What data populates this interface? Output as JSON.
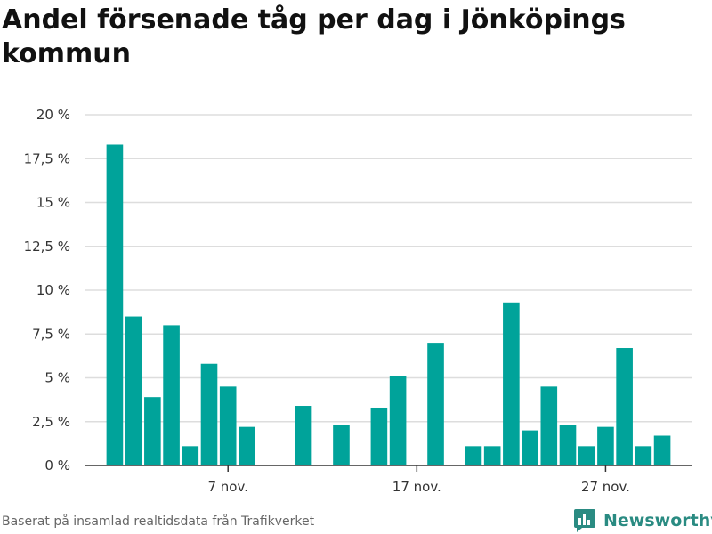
{
  "title": "Andel försenade tåg per dag i Jönköpings kommun",
  "footer": {
    "note": "Baserat på insamlad realtidsdata från Trafikverket",
    "brand": "Newsworthy",
    "brand_icon": "bar-chart-logo-icon"
  },
  "colors": {
    "bar": "#00a39a",
    "grid": "#dddddd",
    "axis": "#333333",
    "brand": "#2a8b82"
  },
  "chart_data": {
    "type": "bar",
    "title": "Andel försenade tåg per dag i Jönköpings kommun",
    "xlabel": "",
    "ylabel": "",
    "ylim": [
      0,
      20
    ],
    "yticks": [
      0,
      2.5,
      5,
      7.5,
      10,
      12.5,
      15,
      17.5,
      20
    ],
    "ytick_labels": [
      "0 %",
      "2,5 %",
      "5 %",
      "7,5 %",
      "10 %",
      "12,5 %",
      "15 %",
      "17,5 %",
      "20 %"
    ],
    "xticks": [
      {
        "day": 7,
        "label": "7 nov."
      },
      {
        "day": 17,
        "label": "17 nov."
      },
      {
        "day": 27,
        "label": "27 nov."
      }
    ],
    "x_range_days": [
      -0.6,
      31.6
    ],
    "grid": true,
    "categories": [
      "1 nov.",
      "2 nov.",
      "3 nov.",
      "4 nov.",
      "5 nov.",
      "6 nov.",
      "7 nov.",
      "8 nov.",
      "9 nov.",
      "10 nov.",
      "11 nov.",
      "12 nov.",
      "13 nov.",
      "14 nov.",
      "15 nov.",
      "16 nov.",
      "17 nov.",
      "18 nov.",
      "19 nov.",
      "20 nov.",
      "21 nov.",
      "22 nov.",
      "23 nov.",
      "24 nov.",
      "25 nov.",
      "26 nov.",
      "27 nov.",
      "28 nov.",
      "29 nov.",
      "30 nov."
    ],
    "days": [
      1,
      2,
      3,
      4,
      5,
      6,
      7,
      8,
      9,
      10,
      11,
      12,
      13,
      14,
      15,
      16,
      17,
      18,
      19,
      20,
      21,
      22,
      23,
      24,
      25,
      26,
      27,
      28,
      29,
      30
    ],
    "values": [
      18.3,
      8.5,
      3.9,
      8.0,
      1.1,
      5.8,
      4.5,
      2.2,
      0,
      0,
      3.4,
      0,
      2.3,
      0,
      3.3,
      5.1,
      0,
      7.0,
      0,
      1.1,
      1.1,
      9.3,
      2.0,
      4.5,
      2.3,
      1.1,
      2.2,
      6.7,
      1.1,
      1.7
    ]
  }
}
